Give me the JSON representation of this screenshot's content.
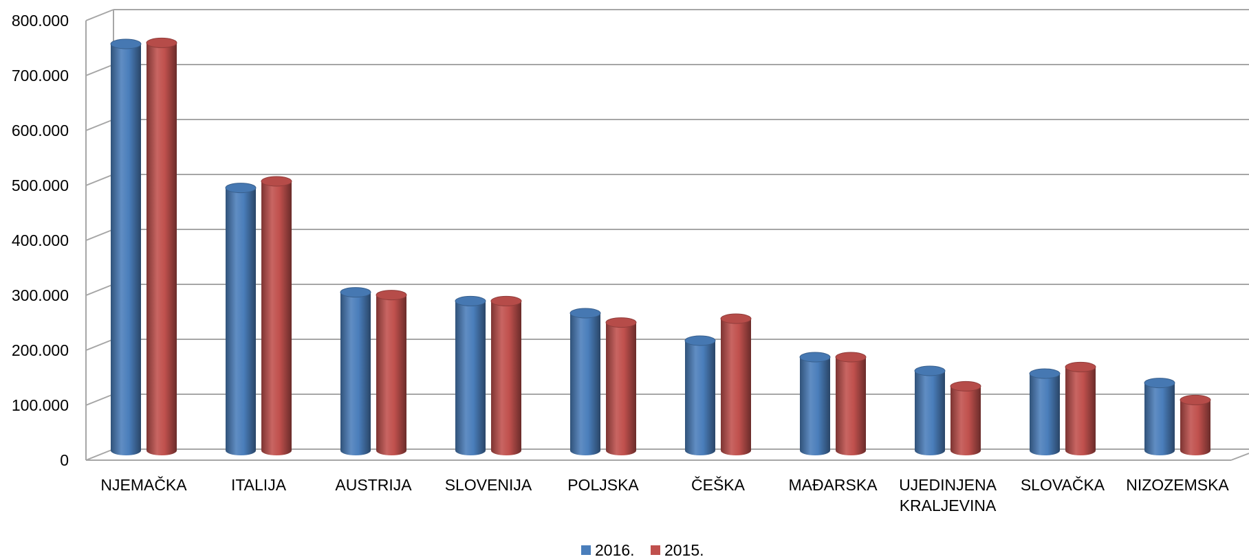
{
  "chart_data": {
    "type": "bar",
    "style": "3d-cylinder",
    "categories": [
      "NJEMAČKA",
      "ITALIJA",
      "AUSTRIJA",
      "SLOVENIJA",
      "POLJSKA",
      "ČEŠKA",
      "MAĐARSKA",
      "UJEDINJENA KRALJEVINA",
      "SLOVAČKA",
      "NIZOZEMSKA"
    ],
    "series": [
      {
        "name": "2016.",
        "color": "#4a7ebb",
        "values": [
          740000,
          478000,
          288000,
          272000,
          250000,
          200000,
          170000,
          145000,
          140000,
          123000
        ]
      },
      {
        "name": "2015.",
        "color": "#c0504d",
        "values": [
          742000,
          490000,
          283000,
          272000,
          233000,
          240000,
          170000,
          117000,
          152000,
          92000
        ]
      }
    ],
    "y_ticks": [
      "0",
      "100.000",
      "200.000",
      "300.000",
      "400.000",
      "500.000",
      "600.000",
      "700.000",
      "800.000"
    ],
    "ylim": [
      0,
      800000
    ],
    "grid": true,
    "legend_position": "bottom"
  }
}
